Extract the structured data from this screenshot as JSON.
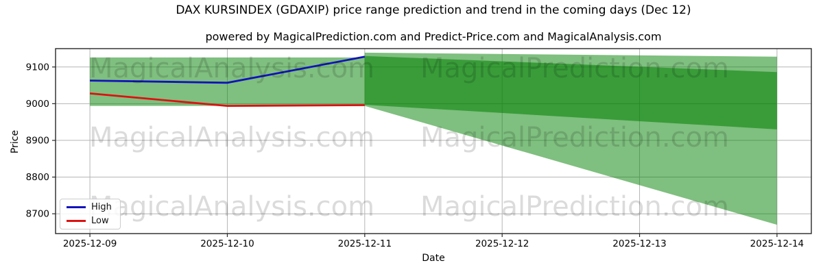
{
  "chart_data": {
    "type": "line",
    "title": "DAX KURSINDEX (GDAXIP) price range prediction and trend in the coming days (Dec 12)",
    "subtitle": "powered by MagicalPrediction.com and Predict-Price.com and MagicalAnalysis.com",
    "xlabel": "Date",
    "ylabel": "Price",
    "x_tick_labels": [
      "2025-12-09",
      "2025-12-10",
      "2025-12-11",
      "2025-12-12",
      "2025-12-13",
      "2025-12-14"
    ],
    "y_ticks": [
      8700,
      8800,
      8900,
      9000,
      9100
    ],
    "xlim_index": [
      -0.25,
      5.25
    ],
    "ylim": [
      8646,
      9150
    ],
    "grid": true,
    "series": [
      {
        "name": "High",
        "color": "#1212bb",
        "x_index": [
          0,
          1,
          2
        ],
        "values": [
          9063,
          9057,
          9128
        ]
      },
      {
        "name": "Low",
        "color": "#dd1111",
        "x_index": [
          0,
          1,
          2
        ],
        "values": [
          9028,
          8994,
          8996
        ]
      }
    ],
    "bands": [
      {
        "name": "observed-range-band",
        "color": "rgba(0,128,0,0.5)",
        "x_index": [
          0,
          2
        ],
        "top": [
          9126,
          9126
        ],
        "bottom": [
          8994,
          8994
        ]
      },
      {
        "name": "forecast-outer-band",
        "color": "rgba(0,128,0,0.5)",
        "x_index": [
          2,
          5
        ],
        "top": [
          9139,
          9128
        ],
        "bottom": [
          8994,
          8670
        ]
      },
      {
        "name": "forecast-inner-band",
        "color": "rgba(0,128,0,0.55)",
        "x_index": [
          2,
          5
        ],
        "top": [
          9130,
          9086
        ],
        "bottom": [
          8997,
          8930
        ]
      }
    ],
    "legend": {
      "position": "lower left",
      "items": [
        {
          "label": "High",
          "color": "#1212bb"
        },
        {
          "label": "Low",
          "color": "#dd1111"
        }
      ]
    }
  },
  "watermarks": {
    "left_text": "MagicalAnalysis.com",
    "right_text": "MagicalPrediction.com"
  },
  "style_colors": {
    "grid": "#b5b5b5",
    "spine": "#262626",
    "watermark": "rgba(0,0,0,0.14)"
  }
}
